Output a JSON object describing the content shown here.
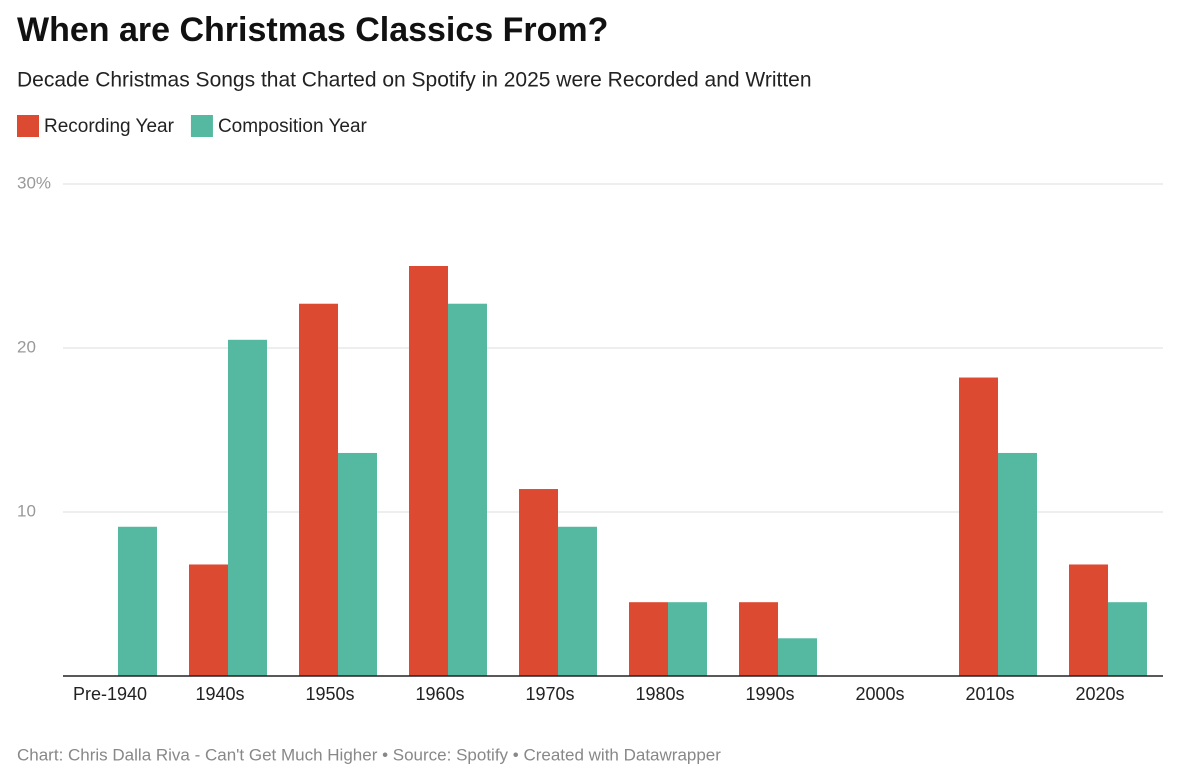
{
  "chart_data": {
    "type": "bar",
    "title": "When are Christmas Classics From?",
    "subtitle": "Decade Christmas Songs that Charted on Spotify in 2025 were Recorded and Written",
    "footer": "Chart: Chris Dalla Riva - Can't Get Much Higher • Source: Spotify • Created with Datawrapper",
    "categories": [
      "Pre-1940",
      "1940s",
      "1950s",
      "1960s",
      "1970s",
      "1980s",
      "1990s",
      "2000s",
      "2010s",
      "2020s"
    ],
    "series": [
      {
        "name": "Recording Year",
        "color": "#dc4a32",
        "values": [
          0,
          6.8,
          22.7,
          25.0,
          11.4,
          4.5,
          4.5,
          0,
          18.2,
          6.8
        ]
      },
      {
        "name": "Composition Year",
        "color": "#55b8a1",
        "values": [
          9.1,
          20.5,
          13.6,
          22.7,
          9.1,
          4.5,
          2.3,
          0,
          13.6,
          4.5
        ]
      }
    ],
    "ylim": [
      0,
      30
    ],
    "yticks": [
      10,
      20,
      {
        "value": 30,
        "label": "30%"
      }
    ],
    "grid": true
  }
}
